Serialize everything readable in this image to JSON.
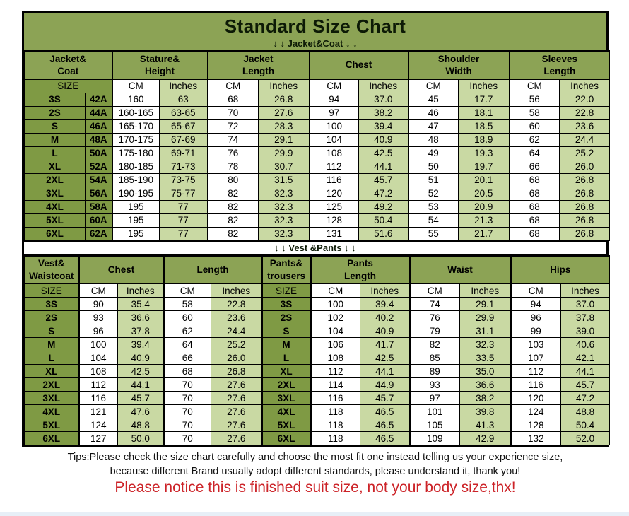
{
  "title": "Standard Size Chart",
  "jacket_table": {
    "section_label": "↓ ↓  Jacket&Coat ↓ ↓",
    "group_headers": [
      [
        "Jacket&",
        "Coat"
      ],
      [
        "Stature&",
        "Height"
      ],
      [
        "Jacket",
        "Length"
      ],
      [
        "Chest"
      ],
      [
        "Shoulder",
        "Width"
      ],
      [
        "Sleeves",
        "Length"
      ]
    ],
    "subheader": [
      "SIZE",
      "CM",
      "Inches",
      "CM",
      "Inches",
      "CM",
      "Inches",
      "CM",
      "Inches",
      "CM",
      "Inches"
    ],
    "rows": [
      [
        "3S",
        "42A",
        "160",
        "63",
        "68",
        "26.8",
        "94",
        "37.0",
        "45",
        "17.7",
        "56",
        "22.0"
      ],
      [
        "2S",
        "44A",
        "160-165",
        "63-65",
        "70",
        "27.6",
        "97",
        "38.2",
        "46",
        "18.1",
        "58",
        "22.8"
      ],
      [
        "S",
        "46A",
        "165-170",
        "65-67",
        "72",
        "28.3",
        "100",
        "39.4",
        "47",
        "18.5",
        "60",
        "23.6"
      ],
      [
        "M",
        "48A",
        "170-175",
        "67-69",
        "74",
        "29.1",
        "104",
        "40.9",
        "48",
        "18.9",
        "62",
        "24.4"
      ],
      [
        "L",
        "50A",
        "175-180",
        "69-71",
        "76",
        "29.9",
        "108",
        "42.5",
        "49",
        "19.3",
        "64",
        "25.2"
      ],
      [
        "XL",
        "52A",
        "180-185",
        "71-73",
        "78",
        "30.7",
        "112",
        "44.1",
        "50",
        "19.7",
        "66",
        "26.0"
      ],
      [
        "2XL",
        "54A",
        "185-190",
        "73-75",
        "80",
        "31.5",
        "116",
        "45.7",
        "51",
        "20.1",
        "68",
        "26.8"
      ],
      [
        "3XL",
        "56A",
        "190-195",
        "75-77",
        "82",
        "32.3",
        "120",
        "47.2",
        "52",
        "20.5",
        "68",
        "26.8"
      ],
      [
        "4XL",
        "58A",
        "195",
        "77",
        "82",
        "32.3",
        "125",
        "49.2",
        "53",
        "20.9",
        "68",
        "26.8"
      ],
      [
        "5XL",
        "60A",
        "195",
        "77",
        "82",
        "32.3",
        "128",
        "50.4",
        "54",
        "21.3",
        "68",
        "26.8"
      ],
      [
        "6XL",
        "62A",
        "195",
        "77",
        "82",
        "32.3",
        "131",
        "51.6",
        "55",
        "21.7",
        "68",
        "26.8"
      ]
    ]
  },
  "vest_table": {
    "section_label": "↓ ↓  Vest &Pants ↓ ↓",
    "group_headers": [
      [
        "Vest&",
        "Waistcoat"
      ],
      [
        "Chest"
      ],
      [
        "Length"
      ],
      [
        "Pants&",
        "trousers"
      ],
      [
        "Pants",
        "Length"
      ],
      [
        "Waist"
      ],
      [
        "Hips"
      ]
    ],
    "subheader": [
      "SIZE",
      "CM",
      "Inches",
      "CM",
      "Inches",
      "SIZE",
      "CM",
      "Inches",
      "CM",
      "Inches",
      "CM",
      "Inches"
    ],
    "rows": [
      [
        "3S",
        "90",
        "35.4",
        "58",
        "22.8",
        "3S",
        "100",
        "39.4",
        "74",
        "29.1",
        "94",
        "37.0"
      ],
      [
        "2S",
        "93",
        "36.6",
        "60",
        "23.6",
        "2S",
        "102",
        "40.2",
        "76",
        "29.9",
        "96",
        "37.8"
      ],
      [
        "S",
        "96",
        "37.8",
        "62",
        "24.4",
        "S",
        "104",
        "40.9",
        "79",
        "31.1",
        "99",
        "39.0"
      ],
      [
        "M",
        "100",
        "39.4",
        "64",
        "25.2",
        "M",
        "106",
        "41.7",
        "82",
        "32.3",
        "103",
        "40.6"
      ],
      [
        "L",
        "104",
        "40.9",
        "66",
        "26.0",
        "L",
        "108",
        "42.5",
        "85",
        "33.5",
        "107",
        "42.1"
      ],
      [
        "XL",
        "108",
        "42.5",
        "68",
        "26.8",
        "XL",
        "112",
        "44.1",
        "89",
        "35.0",
        "112",
        "44.1"
      ],
      [
        "2XL",
        "112",
        "44.1",
        "70",
        "27.6",
        "2XL",
        "114",
        "44.9",
        "93",
        "36.6",
        "116",
        "45.7"
      ],
      [
        "3XL",
        "116",
        "45.7",
        "70",
        "27.6",
        "3XL",
        "116",
        "45.7",
        "97",
        "38.2",
        "120",
        "47.2"
      ],
      [
        "4XL",
        "121",
        "47.6",
        "70",
        "27.6",
        "4XL",
        "118",
        "46.5",
        "101",
        "39.8",
        "124",
        "48.8"
      ],
      [
        "5XL",
        "124",
        "48.8",
        "70",
        "27.6",
        "5XL",
        "118",
        "46.5",
        "105",
        "41.3",
        "128",
        "50.4"
      ],
      [
        "6XL",
        "127",
        "50.0",
        "70",
        "27.6",
        "6XL",
        "118",
        "46.5",
        "109",
        "42.9",
        "132",
        "52.0"
      ]
    ]
  },
  "footer": {
    "tips_line1": "Tips:Please check the size chart carefully and choose the most fit one instead telling us your experience size,",
    "tips_line2": "because different Brand usually adopt different standards, please understand it, thank you!",
    "notice": "Please notice this is finished suit size, not your body size,thx!"
  },
  "colors": {
    "olive_header": "#8CA355",
    "olive_size": "#7F9A44",
    "light_green": "#C9D9A3",
    "notice_red": "#CC2328",
    "border": "#000000"
  }
}
